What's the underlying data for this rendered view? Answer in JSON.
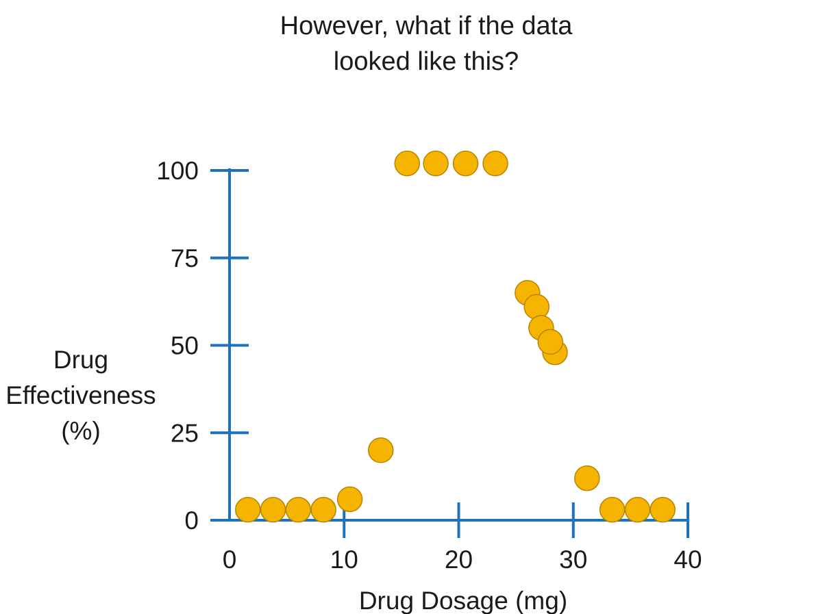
{
  "chart_data": {
    "type": "scatter",
    "title_lines": [
      "However, what if the data",
      "looked like this?"
    ],
    "xlabel": "Drug Dosage (mg)",
    "ylabel_lines": [
      "Drug",
      "Effectiveness",
      "(%)"
    ],
    "xlim": [
      0,
      40
    ],
    "ylim": [
      0,
      100
    ],
    "xticks": [
      0,
      10,
      20,
      30,
      40
    ],
    "yticks": [
      0,
      25,
      50,
      75,
      100
    ],
    "grid": false,
    "colors": {
      "axis": "#1f72b8",
      "marker_fill": "#f4b400",
      "marker_edge": "#b88400"
    },
    "points": [
      {
        "x": 1.6,
        "y": 3
      },
      {
        "x": 3.8,
        "y": 3
      },
      {
        "x": 6.0,
        "y": 3
      },
      {
        "x": 8.2,
        "y": 3
      },
      {
        "x": 10.5,
        "y": 6
      },
      {
        "x": 13.2,
        "y": 20
      },
      {
        "x": 15.5,
        "y": 102
      },
      {
        "x": 18.0,
        "y": 102
      },
      {
        "x": 20.6,
        "y": 102
      },
      {
        "x": 23.2,
        "y": 102
      },
      {
        "x": 26.0,
        "y": 65
      },
      {
        "x": 26.8,
        "y": 61
      },
      {
        "x": 27.2,
        "y": 55
      },
      {
        "x": 28.4,
        "y": 48
      },
      {
        "x": 28.0,
        "y": 51
      },
      {
        "x": 31.2,
        "y": 12
      },
      {
        "x": 33.4,
        "y": 3
      },
      {
        "x": 35.6,
        "y": 3
      },
      {
        "x": 37.8,
        "y": 3
      }
    ]
  }
}
